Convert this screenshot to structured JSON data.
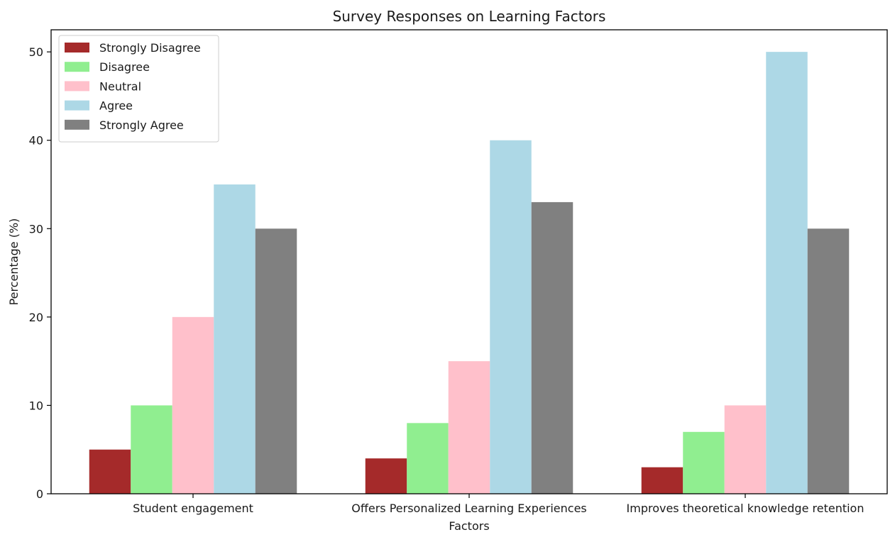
{
  "chart_data": {
    "type": "bar",
    "title": "Survey Responses on Learning Factors",
    "xlabel": "Factors",
    "ylabel": "Percentage (%)",
    "categories": [
      "Student engagement",
      "Offers Personalized Learning Experiences",
      "Improves theoretical knowledge retention"
    ],
    "series": [
      {
        "name": "Strongly Disagree",
        "color": "#a52a2a",
        "values": [
          5,
          4,
          3
        ]
      },
      {
        "name": "Disagree",
        "color": "#90ee90",
        "values": [
          10,
          8,
          7
        ]
      },
      {
        "name": "Neutral",
        "color": "#ffc0cb",
        "values": [
          20,
          15,
          10
        ]
      },
      {
        "name": "Agree",
        "color": "#add8e6",
        "values": [
          35,
          40,
          50
        ]
      },
      {
        "name": "Strongly Agree",
        "color": "#808080",
        "values": [
          30,
          33,
          30
        ]
      }
    ],
    "ylim": [
      0,
      52.5
    ],
    "yticks": [
      0,
      10,
      20,
      30,
      40,
      50
    ],
    "grid": false,
    "legend_position": "top-left"
  }
}
